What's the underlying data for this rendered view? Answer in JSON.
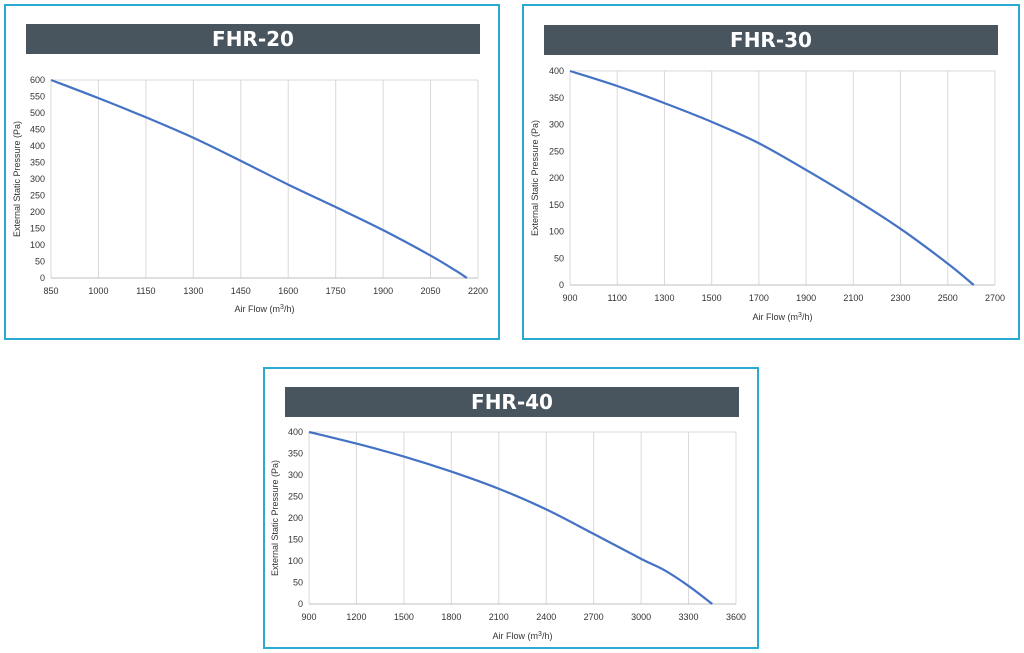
{
  "chart_data": [
    {
      "type": "line",
      "title": "FHR-20",
      "xlabel": "Air Flow  (m3/h)",
      "ylabel": "External Static Pressure (Pa)",
      "xlim": [
        850,
        2200
      ],
      "ylim": [
        0,
        600
      ],
      "xticks": [
        850,
        1000,
        1150,
        1300,
        1450,
        1600,
        1750,
        1900,
        2050,
        2200
      ],
      "yticks": [
        0,
        50,
        100,
        150,
        200,
        250,
        300,
        350,
        400,
        450,
        500,
        550,
        600
      ],
      "grid": "vertical",
      "series": [
        {
          "x": [
            850,
            1000,
            1150,
            1300,
            1450,
            1600,
            1750,
            1900,
            2050,
            2130,
            2165
          ],
          "y": [
            600,
            545,
            487,
            425,
            355,
            283,
            215,
            145,
            68,
            22,
            0
          ],
          "color": "#4472c4"
        }
      ]
    },
    {
      "type": "line",
      "title": "FHR-30",
      "xlabel": "Air Flow  (m3/h)",
      "ylabel": "External Static Pressure (Pa)",
      "xlim": [
        900,
        2700
      ],
      "ylim": [
        0,
        400
      ],
      "xticks": [
        900,
        1100,
        1300,
        1500,
        1700,
        1900,
        2100,
        2300,
        2500,
        2700
      ],
      "yticks": [
        0,
        50,
        100,
        150,
        200,
        250,
        300,
        350,
        400
      ],
      "grid": "vertical",
      "series": [
        {
          "x": [
            900,
            1100,
            1300,
            1500,
            1700,
            1900,
            2100,
            2300,
            2500,
            2610
          ],
          "y": [
            400,
            372,
            340,
            305,
            265,
            215,
            162,
            105,
            40,
            0
          ],
          "color": "#4472c4"
        }
      ]
    },
    {
      "type": "line",
      "title": "FHR-40",
      "xlabel": "Air Flow  (m3/h)",
      "ylabel": "External Static Pressure (Pa)",
      "xlim": [
        900,
        3600
      ],
      "ylim": [
        0,
        400
      ],
      "xticks": [
        900,
        1200,
        1500,
        1800,
        2100,
        2400,
        2700,
        3000,
        3300,
        3600
      ],
      "yticks": [
        0,
        50,
        100,
        150,
        200,
        250,
        300,
        350,
        400
      ],
      "grid": "vertical",
      "series": [
        {
          "x": [
            900,
            1200,
            1500,
            1800,
            2100,
            2400,
            2700,
            3000,
            3150,
            3300,
            3450
          ],
          "y": [
            400,
            373,
            343,
            308,
            268,
            220,
            163,
            105,
            78,
            42,
            0
          ],
          "color": "#4472c4"
        }
      ]
    }
  ]
}
